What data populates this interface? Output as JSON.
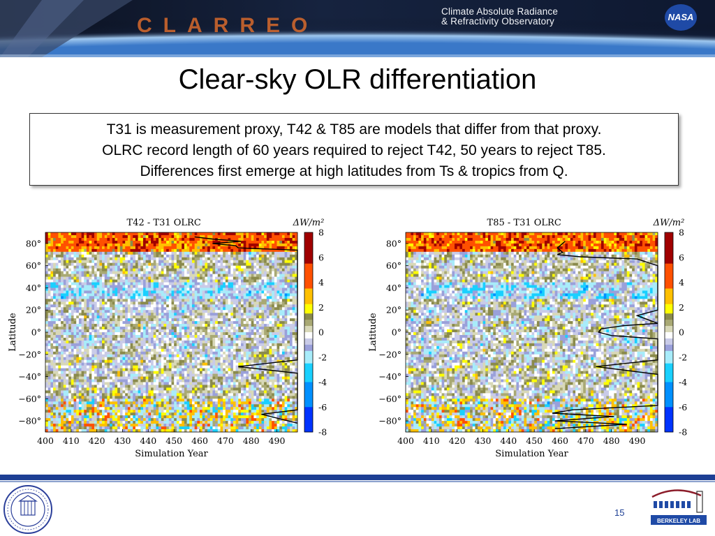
{
  "header": {
    "logo_text": "CLARREO",
    "mission_line1": "Climate Absolute Radiance",
    "mission_line2": "& Refractivity Observatory",
    "agency_logo": "NASA"
  },
  "slide": {
    "title": "Clear-sky OLR differentiation",
    "callout": [
      "T31 is measurement proxy, T42 & T85 are models that differ from that proxy.",
      "OLRC record length of 60 years required to reject T42, 50 years to reject T85.",
      "Differences first emerge at high latitudes from Ts & tropics from Q."
    ]
  },
  "footer": {
    "page_number": "15",
    "left_logo": "seal-of-university-of-california",
    "right_logo": "BERKELEY LAB"
  },
  "colors": {
    "footer_bar": "#1d3f94",
    "colorbar": [
      "#00008f",
      "#0033ff",
      "#00b6ff",
      "#b6f4ff",
      "#9c9cd6",
      "#e8e8ea",
      "#ffffff",
      "#bfbf8a",
      "#9a9a5a",
      "#ffff00",
      "#ffb000",
      "#ff4000",
      "#a00000"
    ]
  },
  "chart_data": [
    {
      "type": "heatmap",
      "title": "T42 - T31 OLRC",
      "colorbar_label": "ΔW/m²",
      "xlabel": "Simulation Year",
      "ylabel": "Latitude",
      "xlim": [
        400,
        498
      ],
      "ylim": [
        -90,
        90
      ],
      "xticks": [
        "400",
        "410",
        "420",
        "430",
        "440",
        "450",
        "460",
        "470",
        "480",
        "490"
      ],
      "yticks": [
        "80°",
        "60°",
        "40°",
        "20°",
        "0°",
        "−20°",
        "−40°",
        "−60°",
        "−80°"
      ],
      "colorbar_ticks": [
        "8",
        "6",
        "4",
        "2",
        "0",
        "-2",
        "-4",
        "-6",
        "-8"
      ],
      "colorbar_range": [
        -8,
        8
      ],
      "overlay_line": {
        "description": "record length needed to detect difference at each latitude (years)",
        "points": [
          [
            86,
            458
          ],
          [
            84,
            465
          ],
          [
            82,
            476
          ],
          [
            80,
            465
          ],
          [
            78,
            474
          ],
          [
            76,
            475
          ],
          [
            74,
            498
          ],
          [
            50,
            498
          ],
          [
            -25,
            498
          ],
          [
            -31,
            475
          ],
          [
            -37,
            498
          ],
          [
            -70,
            498
          ],
          [
            -74,
            484
          ],
          [
            -78,
            491
          ],
          [
            -82,
            498
          ]
        ]
      }
    },
    {
      "type": "heatmap",
      "title": "T85 - T31 OLRC",
      "colorbar_label": "ΔW/m²",
      "xlabel": "Simulation Year",
      "ylabel": "Latitude",
      "xlim": [
        400,
        498
      ],
      "ylim": [
        -90,
        90
      ],
      "xticks": [
        "400",
        "410",
        "420",
        "430",
        "440",
        "450",
        "460",
        "470",
        "480",
        "490"
      ],
      "yticks": [
        "80°",
        "60°",
        "40°",
        "20°",
        "0°",
        "−20°",
        "−40°",
        "−60°",
        "−80°"
      ],
      "colorbar_ticks": [
        "8",
        "6",
        "4",
        "2",
        "0",
        "-2",
        "-4",
        "-6",
        "-8"
      ],
      "colorbar_range": [
        -8,
        8
      ],
      "overlay_line": {
        "description": "record length needed to detect difference at each latitude (years)",
        "points": [
          [
            82,
            462
          ],
          [
            76,
            459
          ],
          [
            72,
            461
          ],
          [
            70,
            459
          ],
          [
            68,
            468
          ],
          [
            66,
            490
          ],
          [
            60,
            498
          ],
          [
            20,
            498
          ],
          [
            15,
            490
          ],
          [
            8,
            498
          ],
          [
            6,
            485
          ],
          [
            3,
            476
          ],
          [
            0,
            475
          ],
          [
            -3,
            480
          ],
          [
            -6,
            498
          ],
          [
            -25,
            498
          ],
          [
            -31,
            474
          ],
          [
            -38,
            498
          ],
          [
            -66,
            498
          ],
          [
            -70,
            465
          ],
          [
            -73,
            457
          ],
          [
            -76,
            481
          ],
          [
            -80,
            458
          ],
          [
            -83,
            486
          ],
          [
            -87,
            458
          ]
        ]
      }
    }
  ]
}
